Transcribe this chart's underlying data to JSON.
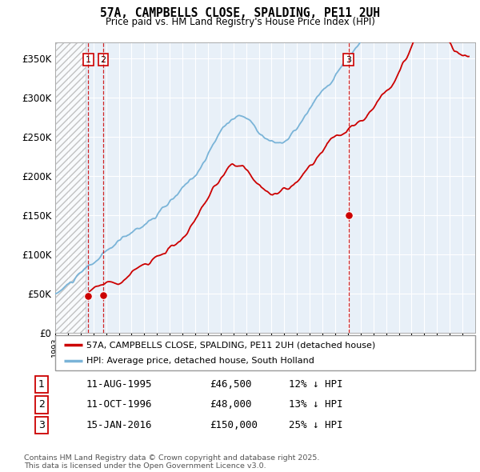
{
  "title": "57A, CAMPBELLS CLOSE, SPALDING, PE11 2UH",
  "subtitle": "Price paid vs. HM Land Registry's House Price Index (HPI)",
  "ylabel_ticks": [
    "£0",
    "£50K",
    "£100K",
    "£150K",
    "£200K",
    "£250K",
    "£300K",
    "£350K"
  ],
  "ytick_values": [
    0,
    50000,
    100000,
    150000,
    200000,
    250000,
    300000,
    350000
  ],
  "ylim": [
    0,
    370000
  ],
  "xlim_start": 1993.0,
  "xlim_end": 2026.0,
  "sale_dates": [
    1995.6,
    1996.78,
    2016.04
  ],
  "sale_prices": [
    46500,
    48000,
    150000
  ],
  "sale_labels": [
    "1",
    "2",
    "3"
  ],
  "hpi_color": "#7ab4d8",
  "price_color": "#cc0000",
  "vline_color": "#cc0000",
  "chart_bg_color": "#e8f0f8",
  "legend_label_red": "57A, CAMPBELLS CLOSE, SPALDING, PE11 2UH (detached house)",
  "legend_label_blue": "HPI: Average price, detached house, South Holland",
  "table_rows": [
    [
      "1",
      "11-AUG-1995",
      "£46,500",
      "12% ↓ HPI"
    ],
    [
      "2",
      "11-OCT-1996",
      "£48,000",
      "13% ↓ HPI"
    ],
    [
      "3",
      "15-JAN-2016",
      "£150,000",
      "25% ↓ HPI"
    ]
  ],
  "footnote": "Contains HM Land Registry data © Crown copyright and database right 2025.\nThis data is licensed under the Open Government Licence v3.0.",
  "background_hatch_end": 1995.4
}
